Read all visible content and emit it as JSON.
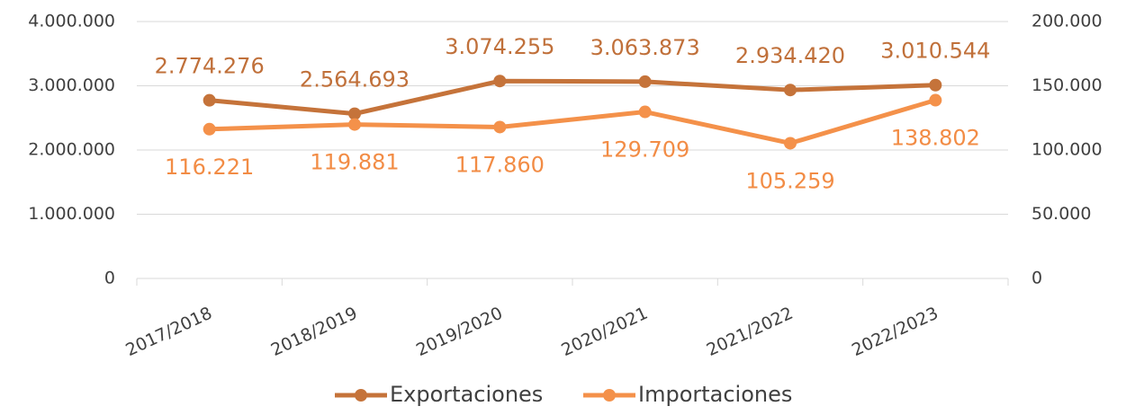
{
  "chart_data": {
    "type": "line",
    "categories": [
      "2017/2018",
      "2018/2019",
      "2019/2020",
      "2020/2021",
      "2021/2022",
      "2022/2023"
    ],
    "series": [
      {
        "name": "Exportaciones",
        "color": "#c5733a",
        "label_color": "#c0703a",
        "values": [
          2774276,
          2564693,
          3074255,
          3063873,
          2934420,
          3010544
        ],
        "value_labels": [
          "2.774.276",
          "2.564.693",
          "3.074.255",
          "3.063.873",
          "2.934.420",
          "3.010.544"
        ]
      },
      {
        "name": "Importaciones",
        "color": "#f4914a",
        "label_color": "#f28c45",
        "axis": "y2",
        "values": [
          116221,
          119881,
          117860,
          129709,
          105259,
          138802
        ],
        "value_labels": [
          "116.221",
          "119.881",
          "117.860",
          "129.709",
          "105.259",
          "138.802"
        ]
      }
    ],
    "ylim": [
      0,
      4000000
    ],
    "yticks": [
      0,
      {
        "value": 1000000,
        "label": "1.000.000"
      },
      {
        "value": 2000000,
        "label": "2.000.000"
      },
      {
        "value": 3000000,
        "label": "3.000.000"
      },
      {
        "value": 4000000,
        "label": "4.000.000"
      }
    ],
    "y2lim": [
      0,
      200000
    ],
    "y2ticks": [
      0,
      {
        "value": 50000,
        "label": "50.000"
      },
      {
        "value": 100000,
        "label": "100.000"
      },
      {
        "value": 150000,
        "label": "150.000"
      },
      {
        "value": 200000,
        "label": "200.000"
      }
    ],
    "grid": true,
    "legend": "bottom"
  }
}
